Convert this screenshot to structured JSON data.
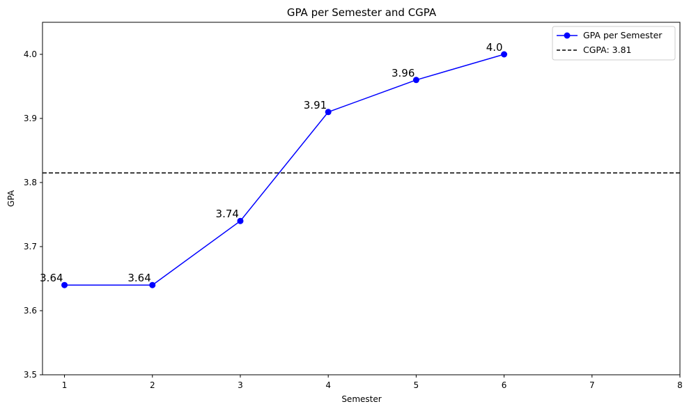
{
  "chart_data": {
    "type": "line",
    "title": "GPA per Semester and CGPA",
    "xlabel": "Semester",
    "ylabel": "GPA",
    "xlim": [
      0.75,
      8
    ],
    "ylim": [
      3.5,
      4.05
    ],
    "x_ticks": [
      1,
      2,
      3,
      4,
      5,
      6,
      7,
      8
    ],
    "y_ticks": [
      "3.5",
      "3.6",
      "3.7",
      "3.8",
      "3.9",
      "4.0"
    ],
    "x": [
      1,
      2,
      3,
      4,
      5,
      6
    ],
    "series": [
      {
        "name": "GPA per Semester",
        "values": [
          3.64,
          3.64,
          3.74,
          3.91,
          3.96,
          4.0
        ],
        "data_labels": [
          "3.64",
          "3.64",
          "3.74",
          "3.91",
          "3.96",
          "4.0"
        ],
        "color": "#0000ff",
        "marker": "circle"
      }
    ],
    "reference_line": {
      "name": "CGPA: 3.81",
      "value": 3.815,
      "color": "#000000",
      "style": "dashed"
    },
    "legend": "top-right",
    "grid": false
  }
}
